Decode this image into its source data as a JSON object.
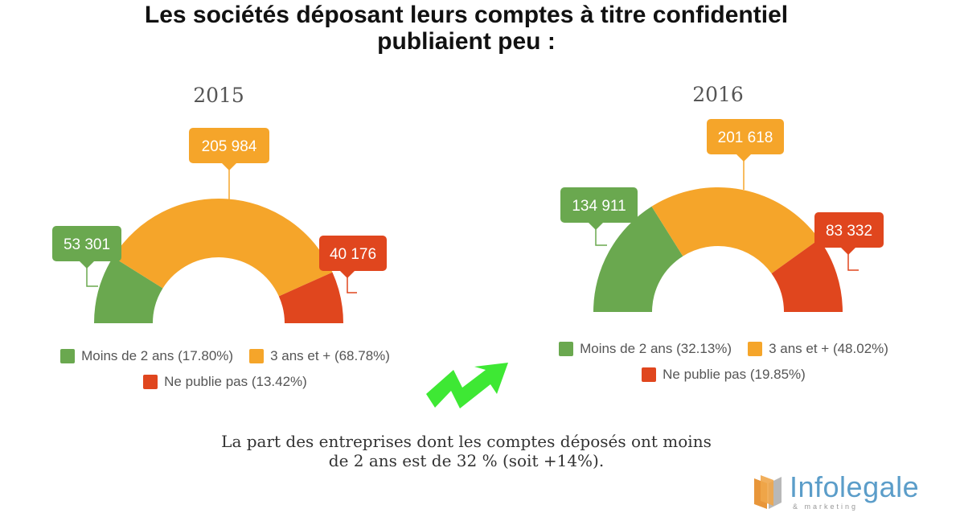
{
  "title_lines": [
    "Les sociétés déposant leurs comptes à titre confidentiel",
    "publiaient peu :"
  ],
  "caption_lines": [
    "La part des entreprises dont les comptes déposés ont moins",
    "de 2 ans est de 32 % (soit +14%)."
  ],
  "logo": {
    "name": "Infolegale",
    "tagline": "& marketing"
  },
  "colors": {
    "green": "#6aa84f",
    "orange": "#f5a52a",
    "red": "#e0461e",
    "arrow": "#3ee834",
    "logo_blue": "#5b9dc9"
  },
  "chart_data": [
    {
      "type": "pie",
      "subtype": "half-donut",
      "title": "2015",
      "series": [
        {
          "name": "Moins de 2 ans",
          "value": 53301,
          "label": "53 301",
          "percent": "17.80%",
          "color": "#6aa84f"
        },
        {
          "name": "3 ans et +",
          "value": 205984,
          "label": "205 984",
          "percent": "68.78%",
          "color": "#f5a52a"
        },
        {
          "name": "Ne publie pas",
          "value": 40176,
          "label": "40 176",
          "percent": "13.42%",
          "color": "#e0461e"
        }
      ],
      "legend": [
        [
          "Moins de 2 ans (17.80%)",
          "3 ans et + (68.78%)"
        ],
        [
          "Ne publie pas (13.42%)"
        ]
      ]
    },
    {
      "type": "pie",
      "subtype": "half-donut",
      "title": "2016",
      "series": [
        {
          "name": "Moins de 2 ans",
          "value": 134911,
          "label": "134 911",
          "percent": "32.13%",
          "color": "#6aa84f"
        },
        {
          "name": "3 ans et +",
          "value": 201618,
          "label": "201 618",
          "percent": "48.02%",
          "color": "#f5a52a"
        },
        {
          "name": "Ne publie pas",
          "value": 83332,
          "label": "83 332",
          "percent": "19.85%",
          "color": "#e0461e"
        }
      ],
      "legend": [
        [
          "Moins de 2 ans (32.13%)",
          "3 ans et + (48.02%)"
        ],
        [
          "Ne publie pas (19.85%)"
        ]
      ]
    }
  ]
}
